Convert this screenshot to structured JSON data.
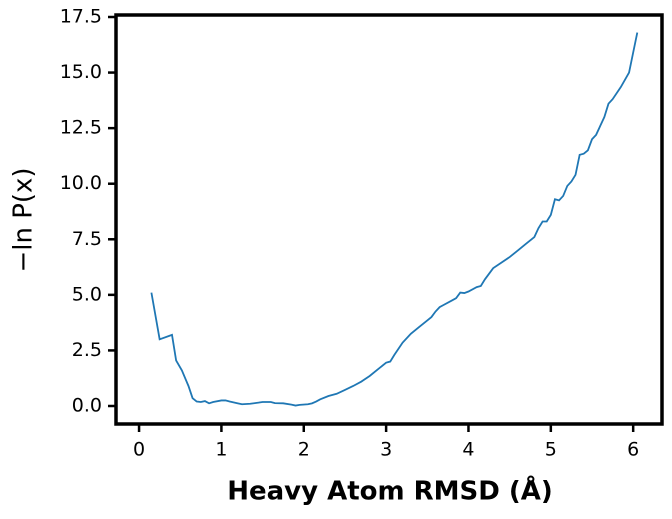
{
  "chart_data": {
    "type": "line",
    "x_label": "Heavy Atom RMSD (Å)",
    "y_label": "−ln P(x)",
    "xlim": [
      -0.28,
      6.35
    ],
    "ylim": [
      -0.81,
      17.59
    ],
    "xticks": [
      0,
      1,
      2,
      3,
      4,
      5,
      6
    ],
    "yticks": [
      {
        "value": 0,
        "label": "0.0"
      },
      2.5,
      {
        "value": 5,
        "label": "5.0"
      },
      7.5,
      {
        "value": 10,
        "label": "10.0"
      },
      12.5,
      {
        "value": 15,
        "label": "15.0"
      },
      17.5
    ],
    "grid": false,
    "series": [
      {
        "color": "#1f77b4",
        "x": [
          0.15,
          0.25,
          0.4,
          0.45,
          0.52,
          0.6,
          0.65,
          0.7,
          0.75,
          0.8,
          0.85,
          0.9,
          1.0,
          1.05,
          1.1,
          1.2,
          1.25,
          1.35,
          1.45,
          1.5,
          1.6,
          1.65,
          1.75,
          1.85,
          1.9,
          1.95,
          2.05,
          2.1,
          2.15,
          2.2,
          2.3,
          2.4,
          2.5,
          2.6,
          2.7,
          2.8,
          2.9,
          3.0,
          3.05,
          3.1,
          3.2,
          3.3,
          3.4,
          3.5,
          3.55,
          3.6,
          3.65,
          3.7,
          3.8,
          3.85,
          3.9,
          3.95,
          4.0,
          4.1,
          4.15,
          4.2,
          4.3,
          4.4,
          4.5,
          4.6,
          4.7,
          4.8,
          4.85,
          4.9,
          4.95,
          5.0,
          5.05,
          5.1,
          5.15,
          5.2,
          5.25,
          5.3,
          5.35,
          5.4,
          5.45,
          5.5,
          5.55,
          5.6,
          5.65,
          5.7,
          5.75,
          5.85,
          5.95,
          6.05
        ],
        "values": [
          5.1,
          3.0,
          3.2,
          2.05,
          1.6,
          0.9,
          0.35,
          0.2,
          0.18,
          0.22,
          0.12,
          0.18,
          0.25,
          0.25,
          0.2,
          0.12,
          0.08,
          0.1,
          0.15,
          0.18,
          0.18,
          0.13,
          0.12,
          0.06,
          0.02,
          0.05,
          0.08,
          0.12,
          0.2,
          0.3,
          0.45,
          0.55,
          0.72,
          0.9,
          1.1,
          1.35,
          1.65,
          1.95,
          2.0,
          2.3,
          2.85,
          3.25,
          3.55,
          3.85,
          4.0,
          4.25,
          4.45,
          4.55,
          4.75,
          4.85,
          5.1,
          5.08,
          5.15,
          5.35,
          5.4,
          5.7,
          6.2,
          6.45,
          6.7,
          7.0,
          7.3,
          7.6,
          8.0,
          8.3,
          8.3,
          8.6,
          9.3,
          9.25,
          9.45,
          9.9,
          10.1,
          10.4,
          11.3,
          11.35,
          11.5,
          12.0,
          12.2,
          12.6,
          13.0,
          13.6,
          13.8,
          14.35,
          15.0,
          16.8
        ]
      }
    ]
  }
}
